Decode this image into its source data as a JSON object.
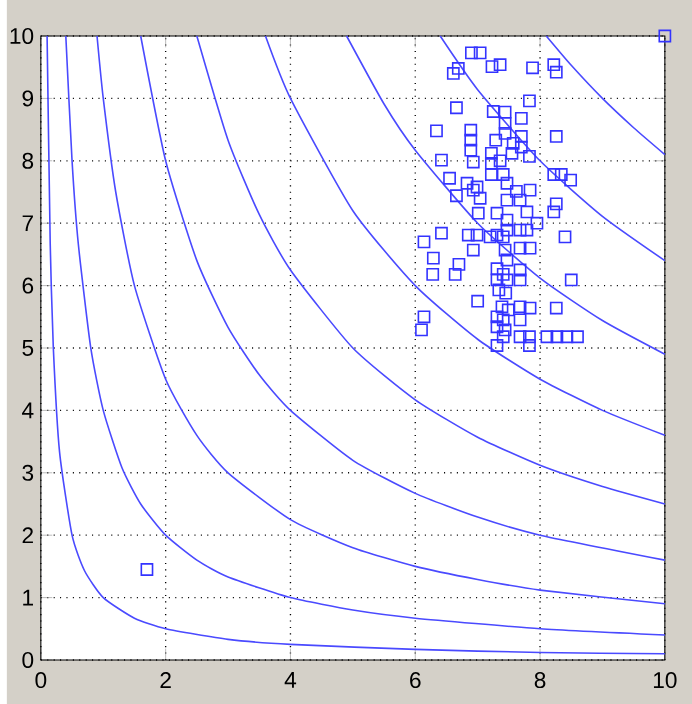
{
  "chart_data": {
    "type": "scatter",
    "xlim": [
      0,
      10
    ],
    "ylim": [
      0,
      10
    ],
    "xticks": [
      0,
      2,
      4,
      6,
      8,
      10
    ],
    "yticks": [
      0,
      1,
      2,
      3,
      4,
      5,
      6,
      7,
      8,
      9,
      10
    ],
    "grid": true,
    "series": [
      {
        "type": "line",
        "color": "#4a4aff",
        "marker": "none",
        "x": [
          0.1,
          0.15,
          0.2,
          0.3,
          0.5,
          0.7,
          1,
          1.5,
          2,
          3,
          4,
          6,
          8,
          10
        ],
        "values": [
          10,
          6.67,
          5,
          3.33,
          2,
          1.43,
          1,
          0.67,
          0.5,
          0.33,
          0.25,
          0.17,
          0.12,
          0.1
        ]
      },
      {
        "type": "line",
        "color": "#4a4aff",
        "marker": "none",
        "x": [
          0.4,
          0.5,
          0.6,
          0.8,
          1,
          1.3,
          1.6,
          2,
          2.5,
          3,
          4,
          5,
          6,
          8,
          10
        ],
        "values": [
          10,
          8,
          6.67,
          5,
          4,
          3.08,
          2.5,
          2,
          1.6,
          1.33,
          1,
          0.8,
          0.67,
          0.5,
          0.4
        ]
      },
      {
        "type": "line",
        "color": "#4a4aff",
        "marker": "none",
        "x": [
          0.9,
          1,
          1.2,
          1.5,
          2,
          2.5,
          3,
          4,
          5,
          6,
          7,
          8,
          10
        ],
        "values": [
          10,
          9,
          7.5,
          6,
          4.5,
          3.6,
          3,
          2.25,
          1.8,
          1.5,
          1.29,
          1.12,
          0.9
        ]
      },
      {
        "type": "line",
        "color": "#4a4aff",
        "marker": "none",
        "x": [
          1.6,
          2,
          2.5,
          3,
          3.5,
          4,
          5,
          6,
          7,
          8,
          10
        ],
        "values": [
          10,
          8,
          6.4,
          5.33,
          4.57,
          4,
          3.2,
          2.67,
          2.29,
          2,
          1.6
        ]
      },
      {
        "type": "line",
        "color": "#4a4aff",
        "marker": "none",
        "x": [
          2.5,
          3,
          3.5,
          4,
          5,
          6,
          7,
          8,
          9,
          10
        ],
        "values": [
          10,
          8.33,
          7.14,
          6.25,
          5,
          4.17,
          3.57,
          3.12,
          2.78,
          2.5
        ]
      },
      {
        "type": "line",
        "color": "#4a4aff",
        "marker": "none",
        "x": [
          3.6,
          4,
          5,
          6,
          7,
          8,
          9,
          10
        ],
        "values": [
          10,
          9,
          7.2,
          6,
          5.14,
          4.5,
          4,
          3.6
        ]
      },
      {
        "type": "line",
        "color": "#4a4aff",
        "marker": "none",
        "x": [
          4.9,
          5.5,
          6,
          7,
          8,
          9,
          10
        ],
        "values": [
          10,
          8.91,
          8.17,
          7,
          6.12,
          5.44,
          4.9
        ]
      },
      {
        "type": "line",
        "color": "#4a4aff",
        "marker": "none",
        "x": [
          6.4,
          7,
          8,
          9,
          10
        ],
        "values": [
          10,
          9.14,
          8,
          7.11,
          6.4
        ]
      },
      {
        "type": "line",
        "color": "#4a4aff",
        "marker": "none",
        "x": [
          8.1,
          8.5,
          9,
          9.5,
          10
        ],
        "values": [
          10,
          9.53,
          9,
          8.53,
          8.1
        ]
      },
      {
        "type": "scatter",
        "color": "#3333ff",
        "marker": "square",
        "x": [
          10,
          1.7,
          6.9,
          7.04,
          6.61,
          6.69,
          7.23,
          7.36,
          7.88,
          8.22,
          8.26,
          7.83,
          6.66,
          7.25,
          7.44,
          7.44,
          7.44,
          7.7,
          6.34,
          6.89,
          6.89,
          6.89,
          7.29,
          7.57,
          7.7,
          7.7,
          7.55,
          8.26,
          7.83,
          6.42,
          6.93,
          7.22,
          7.22,
          7.22,
          7.36,
          7.41,
          7.47,
          6.55,
          6.83,
          6.93,
          6.99,
          6.66,
          7.04,
          7.62,
          7.68,
          7.84,
          8.22,
          8.34,
          8.49,
          7.47,
          8.26,
          8.22,
          7.01,
          7.31,
          7.79,
          7.95,
          7.47,
          7.47,
          7.41,
          7.68,
          7.79,
          6.42,
          6.85,
          6.99,
          7.2,
          7.31,
          6.93,
          6.14,
          6.29,
          6.28,
          6.7,
          6.64,
          8.4,
          7.68,
          7.84,
          7.44,
          7.47,
          7.31,
          7.41,
          7.31,
          7.47,
          7.68,
          7.68,
          8.5,
          7.34,
          7.45,
          7.0,
          7.39,
          7.49,
          7.68,
          7.84,
          8.26,
          6.14,
          6.1,
          7.31,
          7.41,
          7.68,
          7.31,
          7.44,
          7.31,
          7.41,
          7.68,
          7.83,
          7.83,
          8.11,
          8.27,
          8.43,
          8.6
        ],
        "values": [
          10,
          1.45,
          9.73,
          9.73,
          9.4,
          9.48,
          9.51,
          9.54,
          9.49,
          9.54,
          9.42,
          8.96,
          8.85,
          8.79,
          8.78,
          8.6,
          8.44,
          8.68,
          8.48,
          8.49,
          8.33,
          8.17,
          8.33,
          8.28,
          8.39,
          8.22,
          8.12,
          8.39,
          8.07,
          8.01,
          7.98,
          8.12,
          7.96,
          7.78,
          8.0,
          7.78,
          7.64,
          7.72,
          7.64,
          7.53,
          7.58,
          7.44,
          7.4,
          7.51,
          7.37,
          7.53,
          7.78,
          7.78,
          7.69,
          7.37,
          7.31,
          7.18,
          7.16,
          7.16,
          7.18,
          7.0,
          7.05,
          6.89,
          6.78,
          6.89,
          6.89,
          6.84,
          6.81,
          6.81,
          6.78,
          6.81,
          6.57,
          6.7,
          6.44,
          6.18,
          6.34,
          6.18,
          6.78,
          6.6,
          6.6,
          6.57,
          6.41,
          6.27,
          6.18,
          6.09,
          6.09,
          6.25,
          6.09,
          6.09,
          5.93,
          5.88,
          5.75,
          5.66,
          5.61,
          5.66,
          5.64,
          5.64,
          5.5,
          5.29,
          5.5,
          5.45,
          5.45,
          5.34,
          5.29,
          5.04,
          5.18,
          5.18,
          5.18,
          5.04,
          5.18,
          5.18,
          5.18,
          5.18
        ]
      }
    ]
  }
}
